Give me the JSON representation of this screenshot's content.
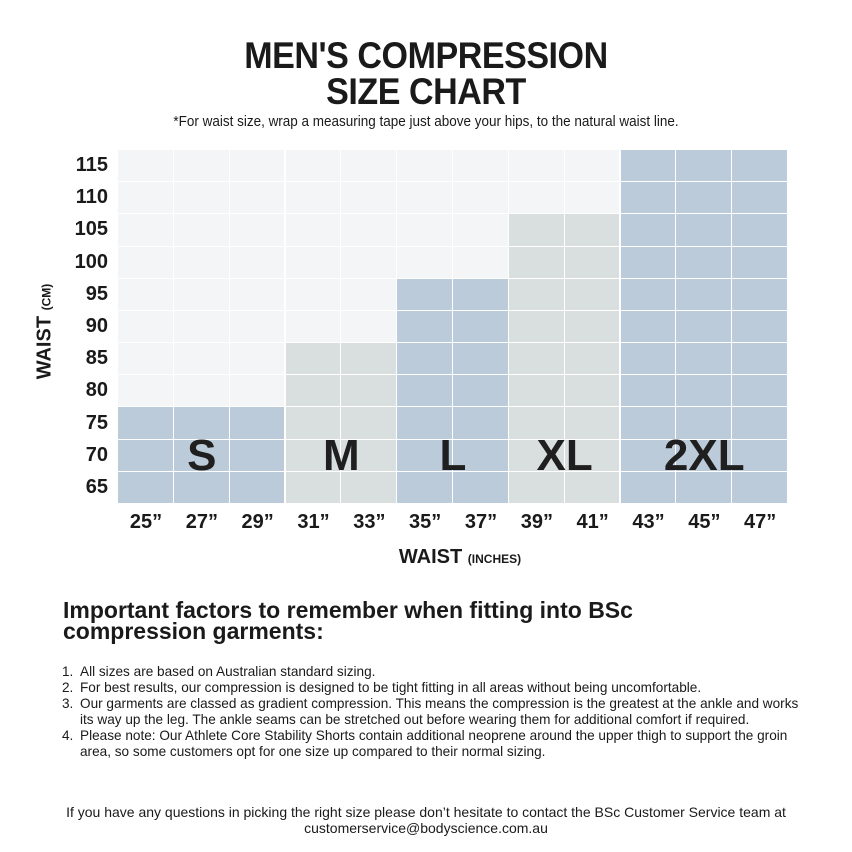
{
  "header": {
    "title_line1": "MEN'S COMPRESSION",
    "title_line2": "SIZE CHART",
    "subtitle": "*For waist size, wrap a measuring tape just above your hips, to the natural waist line."
  },
  "chart_data": {
    "type": "table",
    "title": "MEN'S COMPRESSION SIZE CHART",
    "ylabel": "WAIST",
    "ylabel_unit": "(CM)",
    "xlabel": "WAIST",
    "xlabel_unit": "(INCHES)",
    "y_ticks": [
      "115",
      "110",
      "105",
      "100",
      "95",
      "90",
      "85",
      "80",
      "75",
      "70",
      "65"
    ],
    "x_ticks": [
      "25”",
      "27”",
      "29”",
      "31”",
      "33”",
      "35”",
      "37”",
      "39”",
      "41”",
      "43”",
      "45”",
      "47”"
    ],
    "sizes": [
      {
        "label": "S",
        "inches": [
          "25",
          "27",
          "29"
        ],
        "cm_min": 65,
        "cm_max": 75,
        "col_start": 0,
        "col_span": 3,
        "rows": 3,
        "color": "#bccbda"
      },
      {
        "label": "M",
        "inches": [
          "31",
          "33"
        ],
        "cm_min": 65,
        "cm_max": 85,
        "col_start": 3,
        "col_span": 2,
        "rows": 5,
        "color": "#d9dfdf"
      },
      {
        "label": "L",
        "inches": [
          "35",
          "37"
        ],
        "cm_min": 65,
        "cm_max": 95,
        "col_start": 5,
        "col_span": 2,
        "rows": 7,
        "color": "#bccbda"
      },
      {
        "label": "XL",
        "inches": [
          "39",
          "41"
        ],
        "cm_min": 65,
        "cm_max": 105,
        "col_start": 7,
        "col_span": 2,
        "rows": 9,
        "color": "#d9dfdf"
      },
      {
        "label": "2XL",
        "inches": [
          "43",
          "45",
          "47"
        ],
        "cm_min": 65,
        "cm_max": 115,
        "col_start": 9,
        "col_span": 3,
        "rows": 11,
        "color": "#bccbda"
      }
    ],
    "empty_color": "#f4f5f7"
  },
  "factors": {
    "title": "Important factors to remember when fitting into BSc compression garments:",
    "items": [
      {
        "num": "1.",
        "text": "All sizes are based on Australian standard sizing."
      },
      {
        "num": "2.",
        "text": "For best results, our compression is designed to be tight fitting in all areas without being uncomfortable."
      },
      {
        "num": "3.",
        "text": "Our garments are classed as gradient compression. This means the compression is the greatest at the ankle and works its way up the leg. The ankle seams can be stretched out before wearing them for additional comfort if required."
      },
      {
        "num": "4.",
        "text": "Please note: Our Athlete Core Stability Shorts contain additional neoprene around the upper thigh to support the groin area, so some customers opt for one size up compared to their normal sizing."
      }
    ]
  },
  "footer": {
    "line1": "If you have any questions in picking the right size please don’t hesitate to contact the BSc Customer Service team at",
    "email": "customerservice@bodyscience.com.au"
  }
}
